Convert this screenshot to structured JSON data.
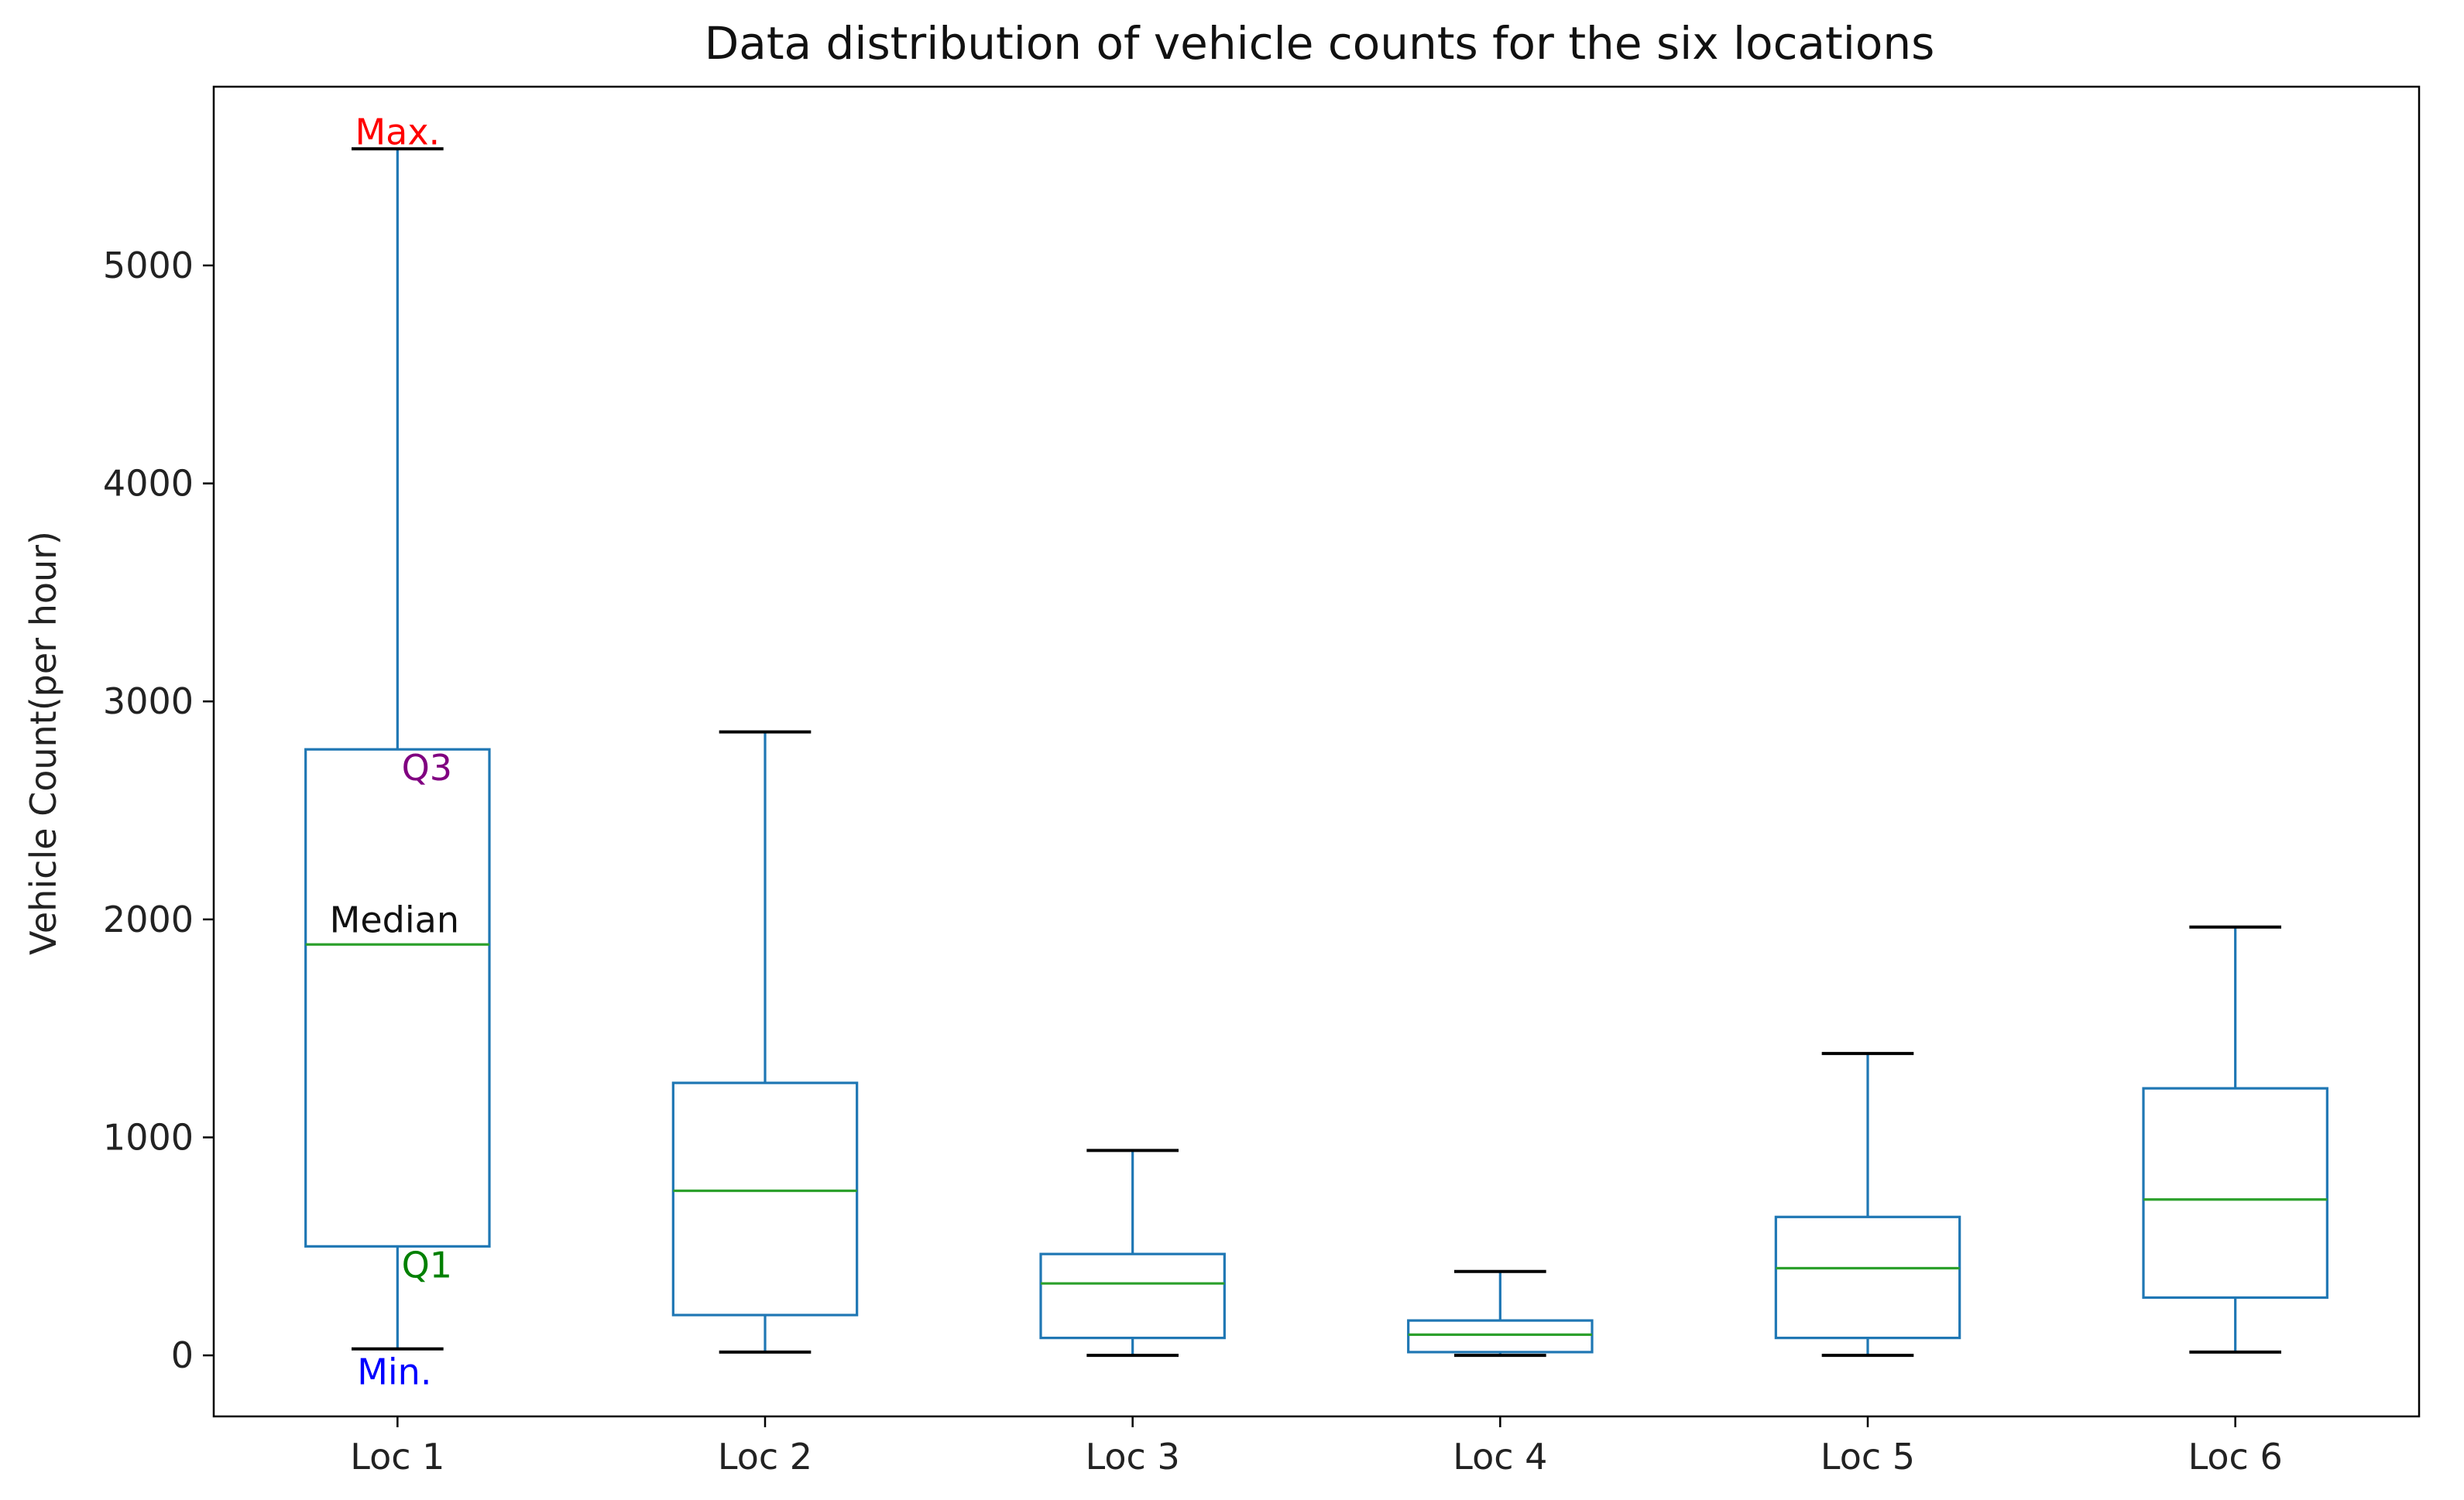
{
  "chart_data": {
    "type": "boxplot",
    "title": "Data distribution of vehicle counts for the six locations",
    "xlabel": "",
    "ylabel": "Vehicle Count(per hour)",
    "ylim": [
      -280,
      5820
    ],
    "yticks": [
      0,
      1000,
      2000,
      3000,
      4000,
      5000
    ],
    "grid": false,
    "categories": [
      "Loc 1",
      "Loc 2",
      "Loc 3",
      "Loc 4",
      "Loc 5",
      "Loc 6"
    ],
    "boxes": [
      {
        "name": "Loc 1",
        "min": 30,
        "q1": 500,
        "median": 1885,
        "q3": 2780,
        "max": 5535
      },
      {
        "name": "Loc 2",
        "min": 15,
        "q1": 185,
        "median": 755,
        "q3": 1250,
        "max": 2860
      },
      {
        "name": "Loc 3",
        "min": 0,
        "q1": 80,
        "median": 330,
        "q3": 465,
        "max": 940
      },
      {
        "name": "Loc 4",
        "min": 0,
        "q1": 15,
        "median": 95,
        "q3": 160,
        "max": 385
      },
      {
        "name": "Loc 5",
        "min": 0,
        "q1": 80,
        "median": 400,
        "q3": 635,
        "max": 1385
      },
      {
        "name": "Loc 6",
        "min": 15,
        "q1": 265,
        "median": 715,
        "q3": 1225,
        "max": 1965
      }
    ],
    "annotations": [
      {
        "text": "Max.",
        "stat": "max",
        "color": "#ff0000"
      },
      {
        "text": "Q3",
        "stat": "q3",
        "color": "#800080"
      },
      {
        "text": "Median",
        "stat": "median",
        "color": "#111111"
      },
      {
        "text": "Q1",
        "stat": "q1",
        "color": "#008000"
      },
      {
        "text": "Min.",
        "stat": "min",
        "color": "#0000ff"
      }
    ],
    "colors": {
      "box": "#1f77b4",
      "median": "#2ca02c",
      "cap": "#000000",
      "axis": "#000000"
    }
  }
}
